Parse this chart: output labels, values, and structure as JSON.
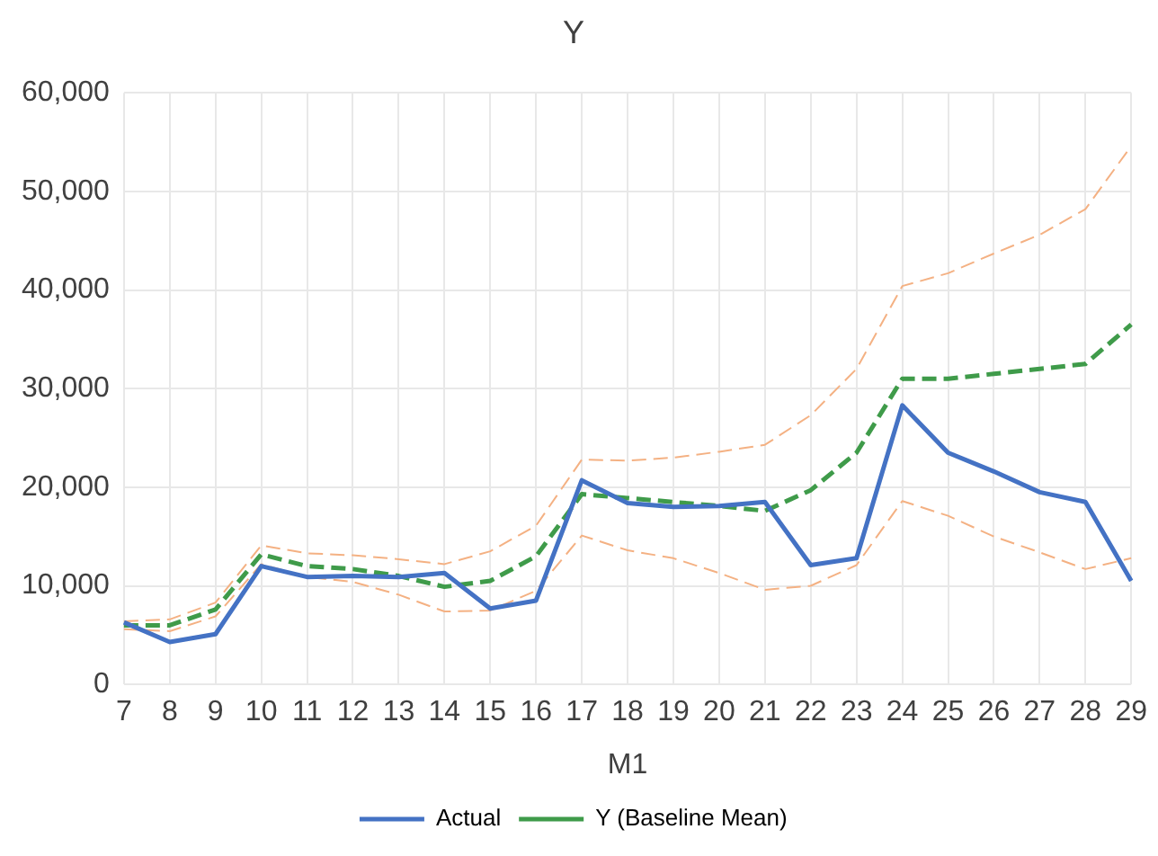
{
  "chart_data": {
    "type": "line",
    "title": "Y",
    "xlabel": "M1",
    "categories": [
      "7",
      "8",
      "9",
      "10",
      "11",
      "12",
      "13",
      "14",
      "15",
      "16",
      "17",
      "18",
      "19",
      "20",
      "21",
      "22",
      "23",
      "24",
      "25",
      "26",
      "27",
      "28",
      "29"
    ],
    "ylim": [
      0,
      60000
    ],
    "yticks": [
      {
        "value": 0,
        "label": "0"
      },
      {
        "value": 10000,
        "label": "10,000"
      },
      {
        "value": 20000,
        "label": "20,000"
      },
      {
        "value": 30000,
        "label": "30,000"
      },
      {
        "value": 40000,
        "label": "40,000"
      },
      {
        "value": 50000,
        "label": "50,000"
      },
      {
        "value": 60000,
        "label": "60,000"
      }
    ],
    "grid": true,
    "legend": "bottom",
    "marker": "none",
    "series": [
      {
        "name": "Actual",
        "color": "#4472c4",
        "line_style": "solid",
        "values": [
          6300,
          4300,
          5100,
          12000,
          10900,
          11000,
          10900,
          11300,
          7700,
          8500,
          20700,
          18400,
          18000,
          18100,
          18500,
          12100,
          12800,
          28300,
          23500,
          21600,
          19500,
          18500,
          10500
        ]
      },
      {
        "name": "Y (Baseline Mean)",
        "color": "#3f9b4a",
        "line_style": "dashed",
        "values": [
          6000,
          6000,
          7600,
          13200,
          12000,
          11700,
          11000,
          9900,
          10500,
          13000,
          19300,
          18900,
          18500,
          18100,
          17600,
          19700,
          23500,
          31000,
          31000,
          31500,
          32000,
          32500,
          36500
        ]
      },
      {
        "color": "#f4b183",
        "line_style": "dashed",
        "values": [
          6400,
          6600,
          8300,
          14100,
          13300,
          13100,
          12700,
          12200,
          13500,
          16100,
          22800,
          22700,
          23000,
          23600,
          24300,
          27300,
          32000,
          40400,
          41700,
          43700,
          45600,
          48200,
          54600
        ]
      },
      {
        "color": "#f4b183",
        "line_style": "dashed",
        "values": [
          5600,
          5400,
          6900,
          12200,
          10900,
          10400,
          9100,
          7400,
          7500,
          9500,
          15100,
          13600,
          12800,
          11300,
          9600,
          10000,
          12100,
          18600,
          17100,
          15000,
          13400,
          11700,
          12800
        ]
      }
    ]
  }
}
